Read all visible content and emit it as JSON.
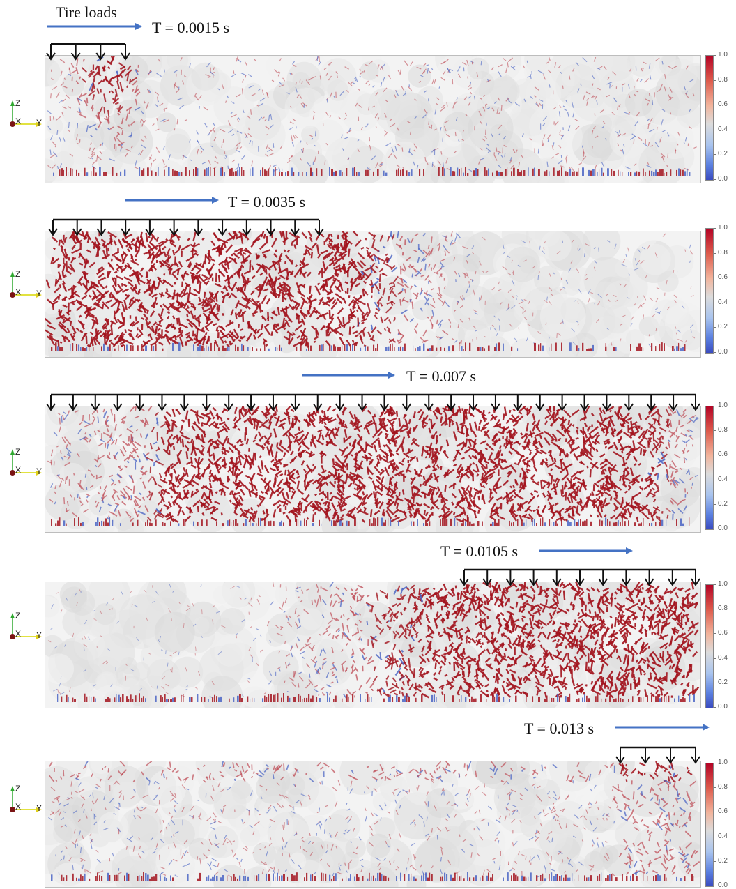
{
  "legend": {
    "tire_loads": "Tire loads"
  },
  "panels": [
    {
      "time_label": "T = 0.0015 s",
      "ticks": [
        "1.0",
        "0.8",
        "0.6",
        "0.4",
        "0.2",
        "0.0"
      ]
    },
    {
      "time_label": "T = 0.0035 s",
      "ticks": [
        "1.0",
        "0.8",
        "0.6",
        "0.4",
        "0.2",
        "0.0"
      ]
    },
    {
      "time_label": "T = 0.007 s",
      "ticks": [
        "1.0",
        "0.8",
        "0.6",
        "0.4",
        "0.2",
        "0.0"
      ]
    },
    {
      "time_label": "T = 0.0105 s",
      "ticks": [
        "1.0",
        "0.8",
        "0.6",
        "0.4",
        "0.2",
        "0.0"
      ]
    },
    {
      "time_label": "T = 0.013 s",
      "ticks": [
        "1.0",
        "0.8",
        "0.6",
        "0.4",
        "0.2",
        "0.0"
      ]
    }
  ],
  "axes": {
    "z": "Z",
    "x": "X",
    "y": "Y"
  },
  "colors": {
    "arrow": "#4472c4",
    "high": "#a3141e",
    "low": "#3b4cc0",
    "mid": "#dcdcdc",
    "load_arrow": "#111111"
  },
  "colorbar_range": [
    0.0,
    1.0
  ]
}
